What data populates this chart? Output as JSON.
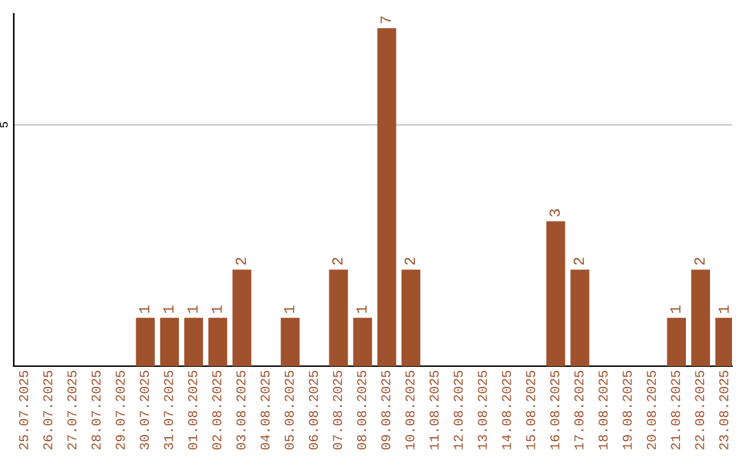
{
  "chart_data": {
    "type": "bar",
    "categories": [
      "25.07.2025",
      "26.07.2025",
      "27.07.2025",
      "28.07.2025",
      "29.07.2025",
      "30.07.2025",
      "31.07.2025",
      "01.08.2025",
      "02.08.2025",
      "03.08.2025",
      "04.08.2025",
      "05.08.2025",
      "06.08.2025",
      "07.08.2025",
      "08.08.2025",
      "09.08.2025",
      "10.08.2025",
      "11.08.2025",
      "12.08.2025",
      "13.08.2025",
      "14.08.2025",
      "15.08.2025",
      "16.08.2025",
      "17.08.2025",
      "18.08.2025",
      "19.08.2025",
      "20.08.2025",
      "21.08.2025",
      "22.08.2025",
      "23.08.2025"
    ],
    "values": [
      0,
      0,
      0,
      0,
      0,
      1,
      1,
      1,
      1,
      2,
      0,
      1,
      0,
      2,
      1,
      7,
      2,
      0,
      0,
      0,
      0,
      0,
      3,
      2,
      0,
      0,
      0,
      1,
      2,
      1
    ],
    "value_labels": [
      null,
      null,
      null,
      null,
      null,
      "1",
      "1",
      "1",
      "1",
      "2",
      null,
      "1",
      null,
      "2",
      "1",
      "7",
      "2",
      null,
      null,
      null,
      null,
      null,
      "3",
      "2",
      null,
      null,
      null,
      "1",
      "2",
      "1"
    ],
    "color": "#a0522d",
    "ylim": [
      0,
      7.3
    ],
    "yticks": [
      5
    ],
    "grid": "y"
  }
}
